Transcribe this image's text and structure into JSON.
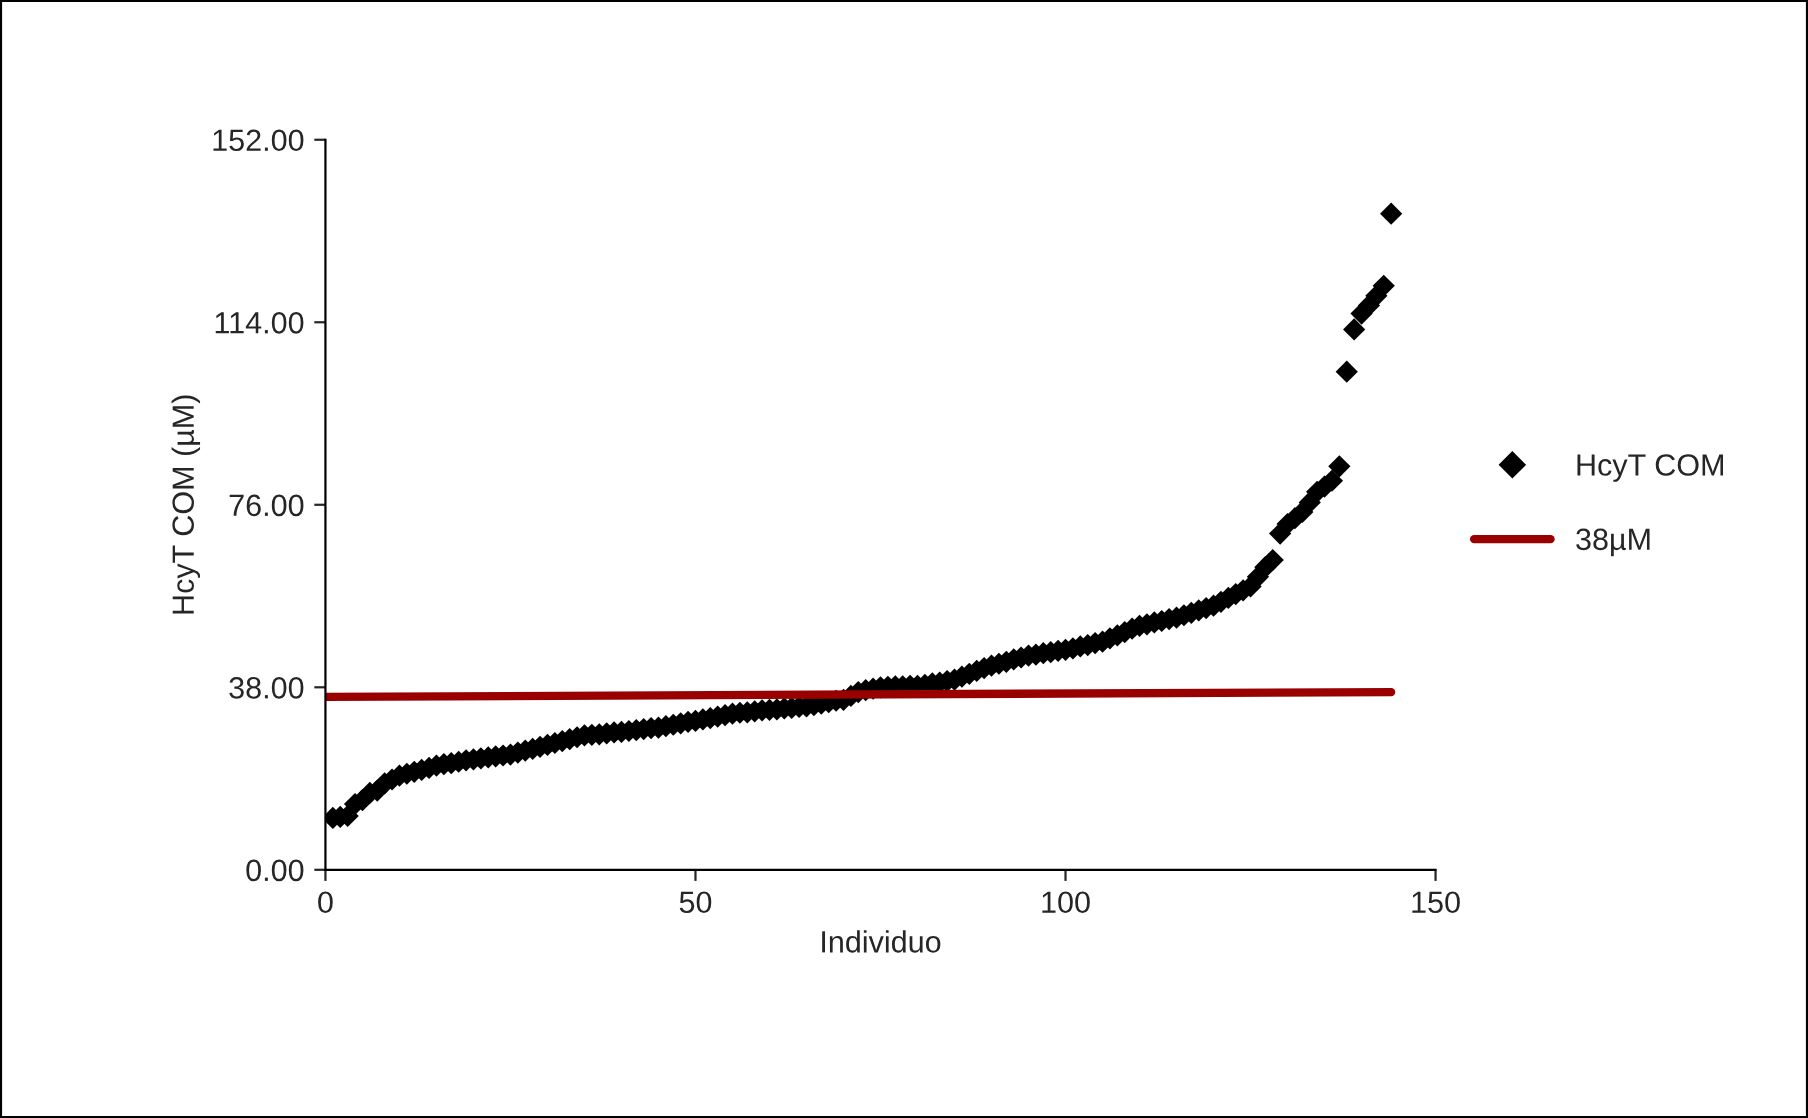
{
  "chart_data": {
    "type": "scatter",
    "xlabel": "Individuo",
    "ylabel": "HcyT COM (µM)",
    "xlim": [
      0,
      150
    ],
    "xticks": [
      0,
      50,
      100,
      150
    ],
    "ylim": [
      0,
      152
    ],
    "yticks": [
      {
        "value": 0,
        "label": "0.00"
      },
      {
        "value": 38,
        "label": "38.00"
      },
      {
        "value": 76,
        "label": "76.00"
      },
      {
        "value": 114,
        "label": "114.00"
      },
      {
        "value": 152,
        "label": "152.00"
      }
    ],
    "grid": false,
    "legend": "right",
    "series": [
      {
        "name": "HcyT COM",
        "color": "#000000",
        "marker": "diamond",
        "x": [
          1,
          2,
          3,
          4,
          5,
          6,
          7,
          8,
          9,
          10,
          11,
          12,
          13,
          14,
          15,
          16,
          17,
          18,
          19,
          20,
          21,
          22,
          23,
          24,
          25,
          26,
          27,
          28,
          29,
          30,
          31,
          32,
          33,
          34,
          35,
          36,
          37,
          38,
          39,
          40,
          41,
          42,
          43,
          44,
          45,
          46,
          47,
          48,
          49,
          50,
          51,
          52,
          53,
          54,
          55,
          56,
          57,
          58,
          59,
          60,
          61,
          62,
          63,
          64,
          65,
          66,
          67,
          68,
          69,
          70,
          71,
          72,
          73,
          74,
          75,
          76,
          77,
          78,
          79,
          80,
          81,
          82,
          83,
          84,
          85,
          86,
          87,
          88,
          89,
          90,
          91,
          92,
          93,
          94,
          95,
          96,
          97,
          98,
          99,
          100,
          101,
          102,
          103,
          104,
          105,
          106,
          107,
          108,
          109,
          110,
          111,
          112,
          113,
          114,
          115,
          116,
          117,
          118,
          119,
          120,
          121,
          122,
          123,
          124,
          125,
          126,
          127,
          128,
          129,
          130,
          131,
          132,
          133,
          134,
          135,
          136,
          137,
          138,
          139,
          140,
          141,
          142,
          143,
          144
        ],
        "values": [
          10.8,
          11.0,
          11.2,
          13.7,
          14.5,
          16.0,
          16.5,
          18.0,
          18.8,
          19.6,
          20.0,
          20.4,
          20.8,
          21.2,
          21.7,
          22.0,
          22.2,
          22.5,
          22.8,
          23.0,
          23.2,
          23.4,
          23.6,
          23.8,
          24.0,
          24.4,
          24.8,
          25.2,
          25.6,
          26.0,
          26.4,
          26.8,
          27.2,
          27.6,
          28.0,
          28.1,
          28.2,
          28.4,
          28.6,
          28.7,
          28.9,
          29.1,
          29.3,
          29.5,
          29.6,
          29.9,
          30.2,
          30.5,
          30.8,
          31.0,
          31.3,
          31.6,
          31.9,
          32.2,
          32.5,
          32.7,
          32.8,
          33.0,
          33.2,
          33.3,
          33.4,
          33.6,
          33.7,
          33.9,
          34.0,
          34.3,
          34.6,
          34.9,
          35.2,
          35.4,
          36.2,
          37.0,
          37.4,
          37.7,
          38.0,
          38.1,
          38.2,
          38.2,
          38.3,
          38.3,
          38.5,
          38.8,
          39.0,
          39.3,
          39.6,
          40.2,
          40.8,
          41.4,
          42.0,
          42.5,
          42.9,
          43.3,
          43.8,
          44.2,
          44.6,
          44.8,
          45.1,
          45.3,
          45.6,
          45.8,
          46.1,
          46.5,
          46.8,
          47.2,
          47.5,
          48.2,
          48.8,
          49.5,
          50.2,
          50.8,
          51.1,
          51.5,
          51.8,
          52.2,
          52.5,
          53.0,
          53.5,
          54.0,
          54.5,
          55.0,
          55.8,
          56.6,
          57.4,
          58.2,
          59.0,
          61.0,
          63.0,
          64.5,
          70.0,
          72.0,
          73.2,
          74.5,
          76.5,
          78.7,
          79.8,
          81.0,
          84.0,
          103.7,
          112.5,
          115.8,
          117.5,
          119.5,
          121.6,
          136.6
        ]
      },
      {
        "name": "38µM",
        "type": "line",
        "marker": "none",
        "color": "#990000",
        "x": [
          0,
          144
        ],
        "values": [
          36.0,
          37.0
        ]
      }
    ]
  }
}
